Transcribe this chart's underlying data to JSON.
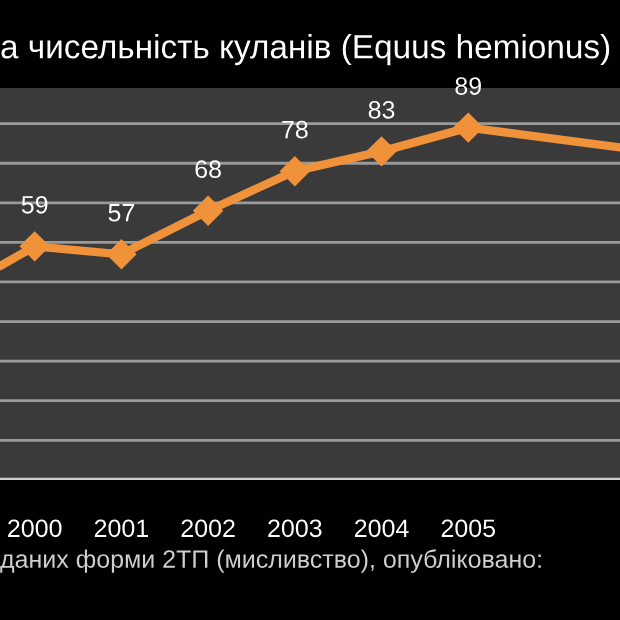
{
  "chart_data": {
    "type": "line",
    "title": "а чисельність куланів (Equus hemionus)",
    "annotations": [
      "даних форми 2ТП (мисливство), опубліковано:"
    ],
    "x": [
      1999.6,
      2000,
      2001,
      2002,
      2003,
      2004,
      2005,
      2006.75
    ],
    "series": [
      {
        "color": "#f0923a",
        "values": [
          54,
          59,
          57,
          68,
          78,
          83,
          89,
          84
        ],
        "value_labels": [
          null,
          "59",
          "57",
          "68",
          "78",
          "83",
          "89",
          null
        ]
      }
    ],
    "xlim": [
      1999.6,
      2006.75
    ],
    "xticks": [
      2000,
      2001,
      2002,
      2003,
      2004,
      2005
    ],
    "ylim": [
      0,
      99
    ],
    "yticks": [
      {
        "value": 0,
        "label": null
      },
      {
        "value": 10,
        "label": null
      },
      {
        "value": 20,
        "label": null
      },
      {
        "value": 30,
        "label": null
      },
      {
        "value": 40,
        "label": null
      },
      {
        "value": 50,
        "label": null
      },
      {
        "value": 60,
        "label": null
      },
      {
        "value": 70,
        "label": null
      },
      {
        "value": 80,
        "label": null
      },
      {
        "value": 90,
        "label": null
      }
    ],
    "tick_labels": "x",
    "grid": "y",
    "marker": "diamond",
    "line_style": "solid",
    "legend": false
  }
}
